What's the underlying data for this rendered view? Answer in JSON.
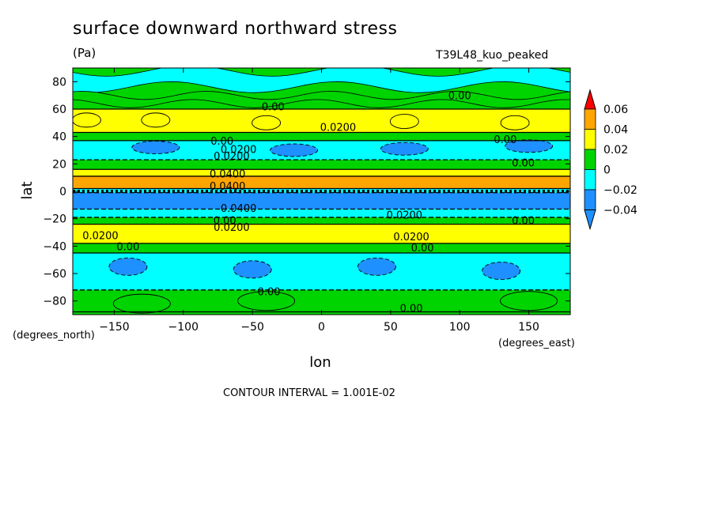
{
  "header": {
    "title": "surface downward northward stress",
    "units": "(Pa)",
    "experiment": "T39L48_kuo_peaked"
  },
  "footer": {
    "contour_interval": "CONTOUR INTERVAL = 1.001E-02"
  },
  "chart_data": {
    "type": "heatmap",
    "title": "surface downward northward stress",
    "units": "(Pa)",
    "xlabel": "lon",
    "ylabel": "lat",
    "x_unit_label": "(degrees_east)",
    "y_unit_label": "(degrees_north)",
    "xlim": [
      -180,
      180
    ],
    "ylim": [
      -90,
      90
    ],
    "x_ticks": [
      -150,
      -100,
      -50,
      0,
      50,
      100,
      150
    ],
    "y_ticks": [
      80,
      60,
      40,
      20,
      0,
      -20,
      -40,
      -60,
      -80
    ],
    "x_tick_labels": [
      "−150",
      "−100",
      "−50",
      "0",
      "50",
      "100",
      "150"
    ],
    "y_tick_labels": [
      "80",
      "60",
      "40",
      "20",
      "0",
      "−20",
      "−40",
      "−60",
      "−80"
    ],
    "colorbar": {
      "levels": [
        -0.04,
        -0.02,
        0,
        0.02,
        0.04,
        0.06
      ],
      "level_labels": [
        "−0.04",
        "−0.02",
        "0",
        "0.02",
        "0.04",
        "0.06"
      ],
      "colors": [
        "#1e90ff",
        "#00ffff",
        "#00d400",
        "#ffff00",
        "#ffa500",
        "#ff0000"
      ],
      "under_color": "#1e90ff",
      "over_color": "#ff0000"
    },
    "zonal_bands": [
      {
        "lat_from": 88,
        "lat_to": 60,
        "class": "0 to 0.02"
      },
      {
        "lat_from": 60,
        "lat_to": 43,
        "class": "0.02 to 0.04"
      },
      {
        "lat_from": 43,
        "lat_to": 37,
        "class": "0 to 0.02"
      },
      {
        "lat_from": 37,
        "lat_to": 23,
        "class": "-0.02 to 0"
      },
      {
        "lat_from": 23,
        "lat_to": 16,
        "class": "0 to 0.02"
      },
      {
        "lat_from": 16,
        "lat_to": 11,
        "class": "0.02 to 0.04"
      },
      {
        "lat_from": 11,
        "lat_to": 2,
        "class": "0.04 to 0.06"
      },
      {
        "lat_from": 2,
        "lat_to": -1,
        "class": "-0.02 to 0"
      },
      {
        "lat_from": -1,
        "lat_to": -13,
        "class": "below -0.04"
      },
      {
        "lat_from": -13,
        "lat_to": -19,
        "class": "-0.02 to 0"
      },
      {
        "lat_from": -19,
        "lat_to": -24,
        "class": "0 to 0.02"
      },
      {
        "lat_from": -24,
        "lat_to": -38,
        "class": "0.02 to 0.04"
      },
      {
        "lat_from": -38,
        "lat_to": -45,
        "class": "0 to 0.02"
      },
      {
        "lat_from": -45,
        "lat_to": -72,
        "class": "-0.02 to 0"
      },
      {
        "lat_from": -72,
        "lat_to": -88,
        "class": "0 to 0.02"
      }
    ],
    "contour_labels": [
      {
        "text": "0.00",
        "lon": -35,
        "lat": 62
      },
      {
        "text": "0.00",
        "lon": 100,
        "lat": 70
      },
      {
        "text": "0.0200",
        "lon": 12,
        "lat": 47
      },
      {
        "text": "0.00",
        "lon": -72,
        "lat": 37
      },
      {
        "text": "0.0200",
        "lon": -60,
        "lat": 31
      },
      {
        "text": "0.0200",
        "lon": -65,
        "lat": 26
      },
      {
        "text": "0.00",
        "lon": 133,
        "lat": 38
      },
      {
        "text": "0.00",
        "lon": 146,
        "lat": 21
      },
      {
        "text": "0.0400",
        "lon": -68,
        "lat": 13
      },
      {
        "text": "0.0400",
        "lon": -68,
        "lat": 4
      },
      {
        "text": "0.0400",
        "lon": -60,
        "lat": -12
      },
      {
        "text": "0.0200",
        "lon": 60,
        "lat": -17
      },
      {
        "text": "0.00",
        "lon": 146,
        "lat": -21
      },
      {
        "text": "0.00",
        "lon": -70,
        "lat": -21
      },
      {
        "text": "0.0200",
        "lon": -65,
        "lat": -26
      },
      {
        "text": "0.0200",
        "lon": -160,
        "lat": -32
      },
      {
        "text": "0.0200",
        "lon": 65,
        "lat": -33
      },
      {
        "text": "0.00",
        "lon": -140,
        "lat": -40
      },
      {
        "text": "0.00",
        "lon": 73,
        "lat": -41
      },
      {
        "text": "0.00",
        "lon": -38,
        "lat": -73
      },
      {
        "text": "0.00",
        "lon": 65,
        "lat": -85
      }
    ]
  }
}
